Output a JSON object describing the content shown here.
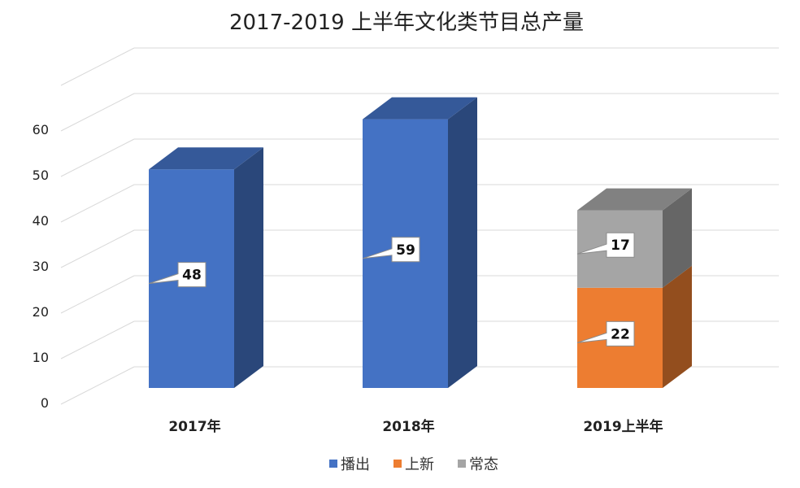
{
  "chart_data": {
    "type": "bar",
    "stacked": true,
    "three_d": true,
    "title": "2017-2019 上半年文化类节目总产量",
    "xlabel": "",
    "ylabel": "",
    "categories": [
      "2017年",
      "2018年",
      "2019上半年"
    ],
    "series": [
      {
        "name": "播出",
        "values": [
          48,
          59,
          0
        ]
      },
      {
        "name": "上新",
        "values": [
          0,
          0,
          22
        ]
      },
      {
        "name": "常态",
        "values": [
          0,
          0,
          17
        ]
      }
    ],
    "data_labels": [
      {
        "category": "2017年",
        "series": "播出",
        "value": "48"
      },
      {
        "category": "2018年",
        "series": "播出",
        "value": "59"
      },
      {
        "category": "2019上半年",
        "series": "上新",
        "value": "22"
      },
      {
        "category": "2019上半年",
        "series": "常态",
        "value": "17"
      }
    ],
    "ylim": [
      0,
      70
    ],
    "yticks": [
      "0",
      "10",
      "20",
      "30",
      "40",
      "50",
      "60"
    ],
    "grid": true,
    "legend_position": "bottom",
    "colors": {
      "播出": "#4472c4",
      "上新": "#ed7d31",
      "常态": "#a5a5a5"
    }
  }
}
